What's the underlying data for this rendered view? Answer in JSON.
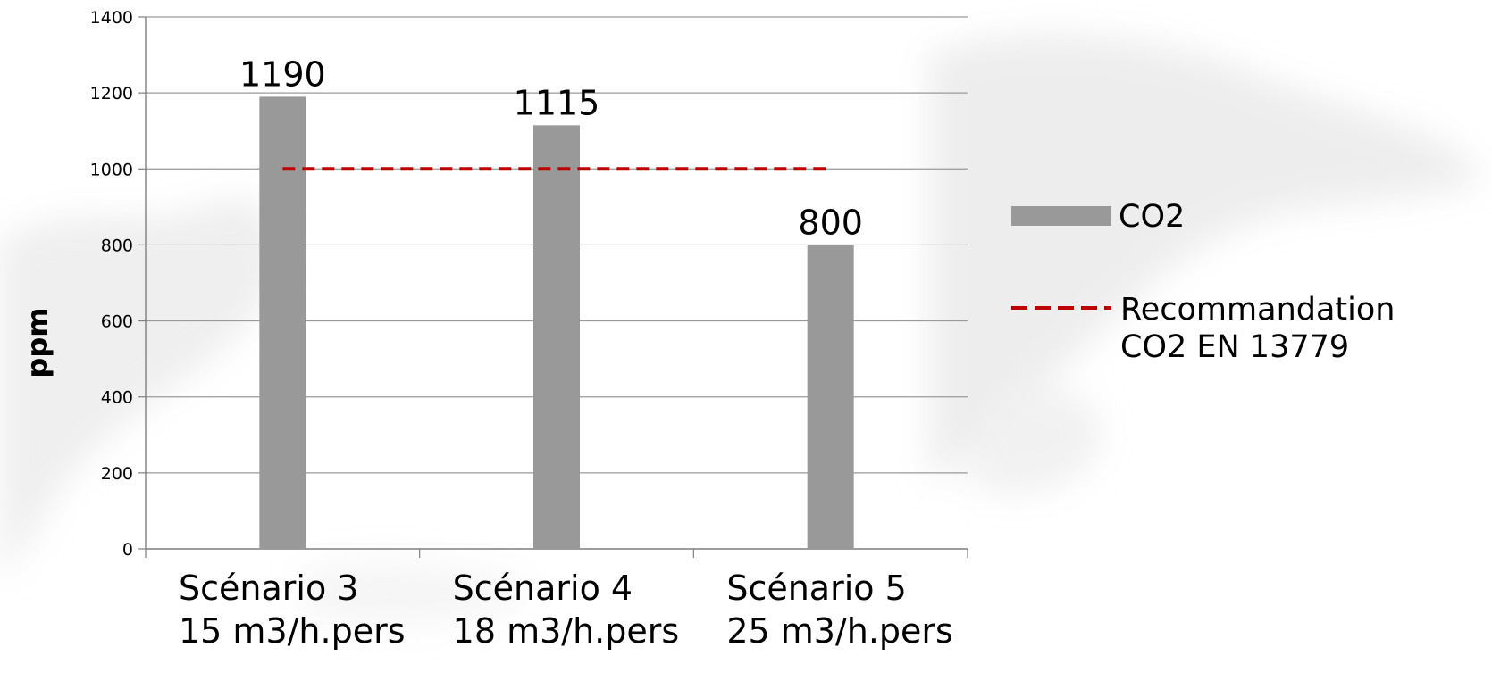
{
  "chart_data": {
    "type": "bar",
    "categories": [
      [
        "Scénario 3",
        "15 m3/h.pers"
      ],
      [
        "Scénario 4",
        "18 m3/h.pers"
      ],
      [
        "Scénario 5",
        "25 m3/h.pers"
      ]
    ],
    "series": [
      {
        "name": "CO2",
        "values": [
          1190,
          1115,
          800
        ],
        "color": "#999999"
      }
    ],
    "reference_line": {
      "name": [
        "Recommandation",
        "CO2 EN 13779"
      ],
      "value": 1000,
      "color": "#c00000",
      "style": "dashed"
    },
    "data_labels": [
      "1190",
      "1115",
      "800"
    ],
    "ylabel": "ppm",
    "ylim": [
      0,
      1400
    ],
    "yticks": [
      0,
      200,
      400,
      600,
      800,
      1000,
      1200,
      1400
    ],
    "grid": true,
    "legend_position": "right"
  }
}
